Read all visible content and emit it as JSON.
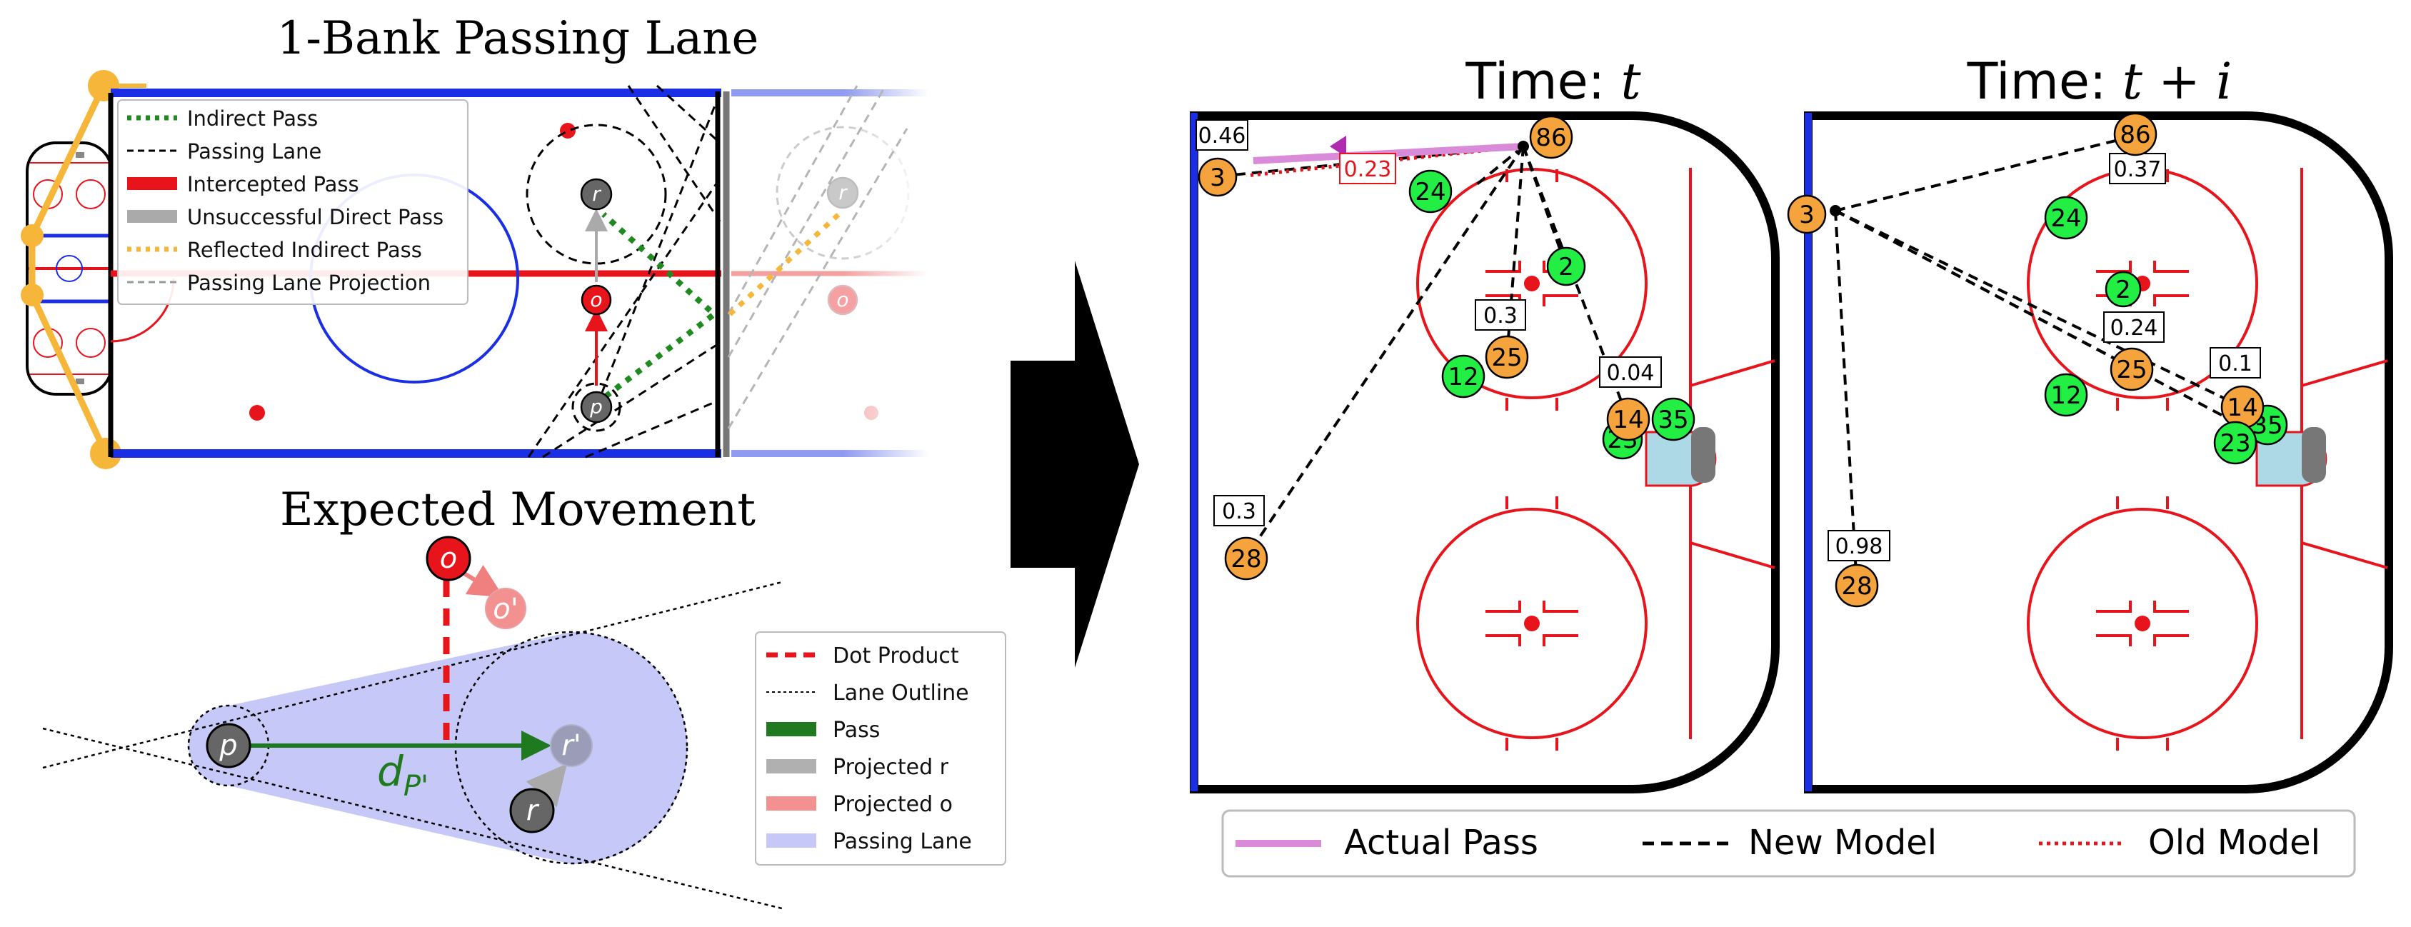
{
  "left_top": {
    "title": "1-Bank Passing Lane",
    "legend": [
      {
        "label": "Indirect Pass",
        "style": "green-dotted"
      },
      {
        "label": "Passing Lane",
        "style": "black-dashed"
      },
      {
        "label": "Intercepted Pass",
        "style": "red-thick"
      },
      {
        "label": "Unsuccessful Direct Pass",
        "style": "gray-thick"
      },
      {
        "label": "Reflected Indirect Pass",
        "style": "orange-dotted"
      },
      {
        "label": "Passing Lane Projection",
        "style": "gray-dashed"
      }
    ],
    "players": {
      "receiver": "r",
      "opponent": "o",
      "passer": "p"
    }
  },
  "left_bottom": {
    "title": "Expected Movement",
    "players": {
      "opponent": "o",
      "opponent_projected": "o'",
      "passer": "p",
      "receiver": "r",
      "receiver_projected": "r'"
    },
    "distance_label": "d",
    "distance_sub": "P'",
    "legend": [
      {
        "label": "Dot Product",
        "style": "red-dashed"
      },
      {
        "label": "Lane Outline",
        "style": "black-fine-dashed"
      },
      {
        "label": "Pass",
        "style": "green"
      },
      {
        "label": "Projected r",
        "style": "gray"
      },
      {
        "label": "Projected o",
        "style": "salmon"
      },
      {
        "label": "Passing Lane",
        "style": "lavender"
      }
    ]
  },
  "right": {
    "panel_t": {
      "title_prefix": "Time: ",
      "title_var": "t",
      "players": [
        {
          "num": "3",
          "team": "orange"
        },
        {
          "num": "86",
          "team": "orange"
        },
        {
          "num": "24",
          "team": "green"
        },
        {
          "num": "2",
          "team": "green"
        },
        {
          "num": "25",
          "team": "orange"
        },
        {
          "num": "12",
          "team": "green"
        },
        {
          "num": "14",
          "team": "orange"
        },
        {
          "num": "23",
          "team": "green"
        },
        {
          "num": "35",
          "team": "green"
        },
        {
          "num": "28",
          "team": "orange"
        }
      ],
      "probs": [
        "0.46",
        "0.23",
        "0.3",
        "0.04",
        "0.3"
      ]
    },
    "panel_ti": {
      "title_prefix": "Time: ",
      "title_var": "t + i",
      "players": [
        {
          "num": "86",
          "team": "orange"
        },
        {
          "num": "3",
          "team": "orange"
        },
        {
          "num": "24",
          "team": "green"
        },
        {
          "num": "2",
          "team": "green"
        },
        {
          "num": "25",
          "team": "orange"
        },
        {
          "num": "12",
          "team": "green"
        },
        {
          "num": "14",
          "team": "orange"
        },
        {
          "num": "35",
          "team": "green"
        },
        {
          "num": "23",
          "team": "green"
        },
        {
          "num": "28",
          "team": "orange"
        }
      ],
      "probs": [
        "0.37",
        "0.24",
        "0.1",
        "0.98"
      ]
    },
    "legend": [
      {
        "label": "Actual Pass",
        "style": "violet"
      },
      {
        "label": "New Model",
        "style": "black-dashed"
      },
      {
        "label": "Old Model",
        "style": "red-dotted"
      }
    ],
    "colors": {
      "orange": "#f5a33c",
      "green": "#22ee44",
      "red": "#e8141c",
      "blue": "#1a2ee6",
      "violet": "#d98ad9"
    }
  }
}
